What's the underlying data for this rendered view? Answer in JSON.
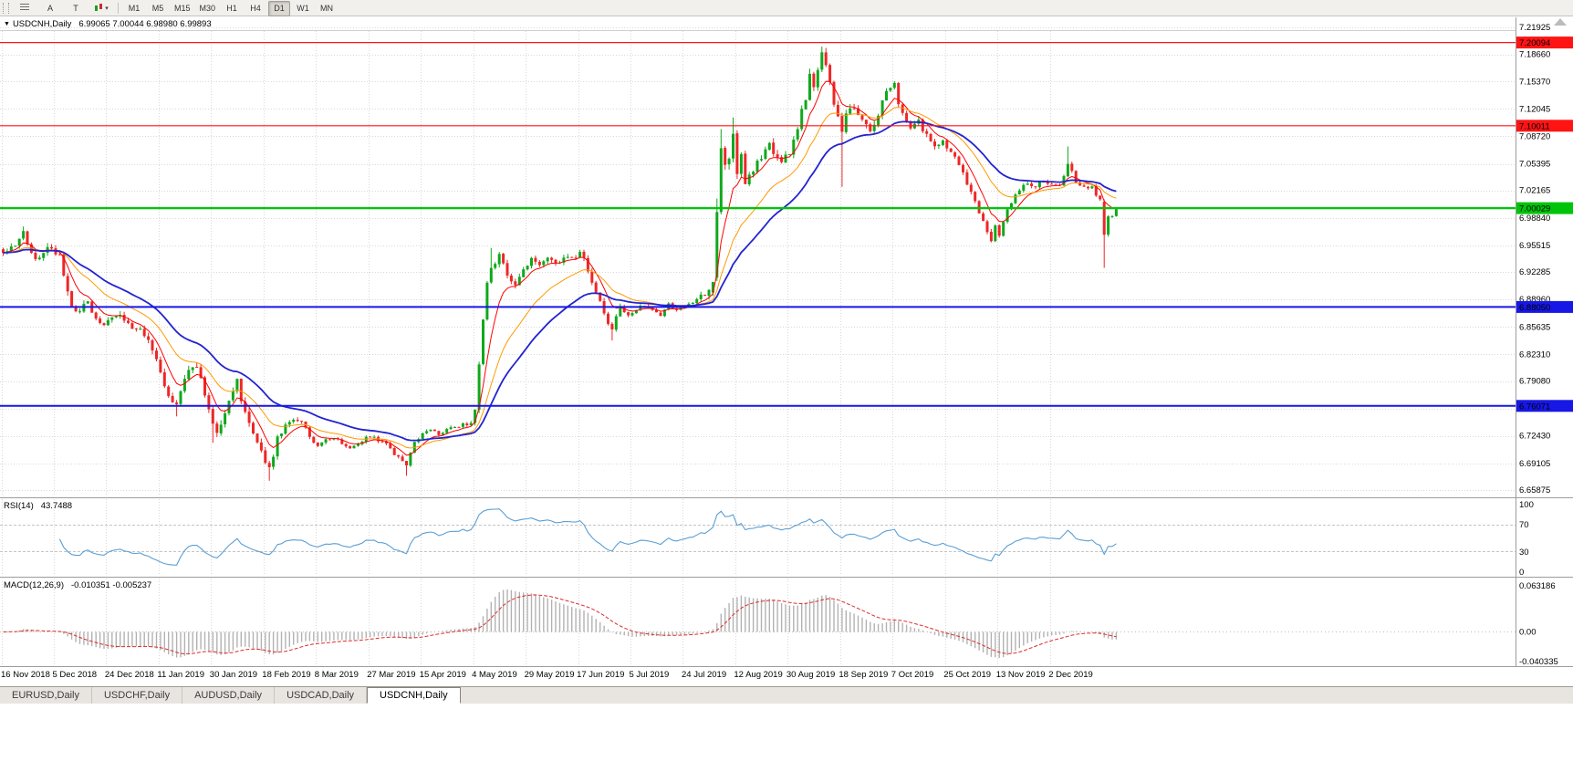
{
  "toolbar": {
    "tool_a": "A",
    "tool_t": "T",
    "timeframes": [
      "M1",
      "M5",
      "M15",
      "M30",
      "H1",
      "H4",
      "D1",
      "W1",
      "MN"
    ],
    "active_timeframe": "D1"
  },
  "chart": {
    "header": {
      "dropdown_glyph": "▼",
      "symbol": "USDCNH,Daily",
      "ohlc": "6.99065 7.00044 6.98980 6.99893"
    },
    "price_ticks": [
      "7.21925",
      "7.18660",
      "7.15370",
      "7.12045",
      "7.08720",
      "7.05395",
      "7.02165",
      "6.98840",
      "6.95515",
      "6.92285",
      "6.88960",
      "6.85635",
      "6.82310",
      "6.79080",
      "6.75755",
      "6.72430",
      "6.69105",
      "6.65875"
    ],
    "levels": [
      {
        "label": "7.20094",
        "price": 7.20094,
        "color": "#ff1414",
        "line_width": 1.2
      },
      {
        "label": "7.10011",
        "price": 7.10011,
        "color": "#ff1414",
        "line_width": 1.2
      },
      {
        "label": "7.00029",
        "price": 7.00029,
        "color": "#00c40a",
        "line_width": 2.4
      },
      {
        "label": "6.88050",
        "price": 6.8805,
        "color": "#1717e6",
        "line_width": 2
      },
      {
        "label": "6.76071",
        "price": 6.76071,
        "color": "#1717e6",
        "line_width": 2
      }
    ]
  },
  "rsi": {
    "label": "RSI(14)",
    "value": "43.7488",
    "ticks": [
      "100",
      "70",
      "30",
      "0"
    ]
  },
  "macd": {
    "label": "MACD(12,26,9)",
    "values": "-0.010351 -0.005237",
    "ticks": [
      "0.063186",
      "0.00",
      "-0.040335"
    ]
  },
  "tabs": {
    "labels": [
      "EURUSD,Daily",
      "USDCHF,Daily",
      "AUDUSD,Daily",
      "USDCAD,Daily",
      "USDCNH,Daily"
    ],
    "active_index": 4
  },
  "colors": {
    "up": "#0fa81c",
    "down": "#ed2727",
    "ma_fast": "#ff0000",
    "ma_mid": "#ff9a00",
    "ma_slow": "#2323cf",
    "rsi_line": "#5b9fd4",
    "macd_hist": "#b2b2b2",
    "macd_signal": "#dd2c2c",
    "grid": "#d9d9d9",
    "separator": "#9c9c9c",
    "axis_text": "#000000"
  },
  "chart_data": [
    {
      "type": "candlestick",
      "symbol": "USDCNH",
      "timeframe": "Daily",
      "bar_count": 277,
      "bars_per_x_label": 13,
      "y_range": [
        6.65875,
        7.21925
      ],
      "x_labels": [
        "16 Nov 2018",
        "5 Dec 2018",
        "24 Dec 2018",
        "11 Jan 2019",
        "30 Jan 2019",
        "18 Feb 2019",
        "8 Mar 2019",
        "27 Mar 2019",
        "15 Apr 2019",
        "4 May 2019",
        "29 May 2019",
        "17 Jun 2019",
        "5 Jul 2019",
        "24 Jul 2019",
        "12 Aug 2019",
        "30 Aug 2019",
        "18 Sep 2019",
        "7 Oct 2019",
        "25 Oct 2019",
        "13 Nov 2019",
        "2 Dec 2019"
      ],
      "price_close_anchors": [
        [
          0,
          6.946
        ],
        [
          2,
          6.953
        ],
        [
          4,
          6.963
        ],
        [
          5,
          6.97
        ],
        [
          6,
          6.955
        ],
        [
          8,
          6.938
        ],
        [
          10,
          6.946
        ],
        [
          12,
          6.952
        ],
        [
          14,
          6.945
        ],
        [
          15,
          6.918
        ],
        [
          16,
          6.898
        ],
        [
          17,
          6.885
        ],
        [
          19,
          6.874
        ],
        [
          21,
          6.888
        ],
        [
          23,
          6.864
        ],
        [
          25,
          6.858
        ],
        [
          27,
          6.869
        ],
        [
          29,
          6.873
        ],
        [
          31,
          6.86
        ],
        [
          34,
          6.852
        ],
        [
          37,
          6.832
        ],
        [
          39,
          6.802
        ],
        [
          41,
          6.77
        ],
        [
          43,
          6.762
        ],
        [
          45,
          6.79
        ],
        [
          47,
          6.812
        ],
        [
          49,
          6.796
        ],
        [
          51,
          6.754
        ],
        [
          53,
          6.728
        ],
        [
          55,
          6.752
        ],
        [
          57,
          6.777
        ],
        [
          58,
          6.79
        ],
        [
          60,
          6.752
        ],
        [
          62,
          6.724
        ],
        [
          64,
          6.707
        ],
        [
          66,
          6.684
        ],
        [
          68,
          6.72
        ],
        [
          70,
          6.737
        ],
        [
          72,
          6.747
        ],
        [
          74,
          6.74
        ],
        [
          76,
          6.724
        ],
        [
          78,
          6.713
        ],
        [
          80,
          6.719
        ],
        [
          82,
          6.723
        ],
        [
          84,
          6.713
        ],
        [
          86,
          6.707
        ],
        [
          88,
          6.715
        ],
        [
          90,
          6.721
        ],
        [
          92,
          6.723
        ],
        [
          94,
          6.717
        ],
        [
          96,
          6.709
        ],
        [
          98,
          6.697
        ],
        [
          100,
          6.69
        ],
        [
          102,
          6.717
        ],
        [
          104,
          6.727
        ],
        [
          106,
          6.733
        ],
        [
          108,
          6.725
        ],
        [
          110,
          6.731
        ],
        [
          112,
          6.735
        ],
        [
          114,
          6.737
        ],
        [
          116,
          6.743
        ],
        [
          117,
          6.752
        ],
        [
          118,
          6.808
        ],
        [
          119,
          6.868
        ],
        [
          120,
          6.908
        ],
        [
          121,
          6.93
        ],
        [
          123,
          6.943
        ],
        [
          125,
          6.92
        ],
        [
          127,
          6.904
        ],
        [
          129,
          6.927
        ],
        [
          131,
          6.937
        ],
        [
          133,
          6.931
        ],
        [
          135,
          6.943
        ],
        [
          137,
          6.933
        ],
        [
          139,
          6.943
        ],
        [
          141,
          6.937
        ],
        [
          143,
          6.947
        ],
        [
          145,
          6.927
        ],
        [
          147,
          6.897
        ],
        [
          149,
          6.873
        ],
        [
          151,
          6.853
        ],
        [
          153,
          6.883
        ],
        [
          155,
          6.869
        ],
        [
          157,
          6.879
        ],
        [
          159,
          6.883
        ],
        [
          161,
          6.877
        ],
        [
          163,
          6.871
        ],
        [
          165,
          6.883
        ],
        [
          167,
          6.877
        ],
        [
          169,
          6.883
        ],
        [
          171,
          6.887
        ],
        [
          173,
          6.893
        ],
        [
          175,
          6.897
        ],
        [
          176,
          6.913
        ],
        [
          177,
          7.002
        ],
        [
          178,
          7.078
        ],
        [
          179,
          7.048
        ],
        [
          180,
          7.063
        ],
        [
          181,
          7.09
        ],
        [
          182,
          7.046
        ],
        [
          183,
          7.063
        ],
        [
          184,
          7.03
        ],
        [
          186,
          7.049
        ],
        [
          188,
          7.063
        ],
        [
          190,
          7.082
        ],
        [
          191,
          7.063
        ],
        [
          193,
          7.059
        ],
        [
          195,
          7.069
        ],
        [
          197,
          7.099
        ],
        [
          199,
          7.136
        ],
        [
          200,
          7.158
        ],
        [
          201,
          7.149
        ],
        [
          202,
          7.172
        ],
        [
          203,
          7.186
        ],
        [
          204,
          7.176
        ],
        [
          205,
          7.153
        ],
        [
          206,
          7.128
        ],
        [
          207,
          7.108
        ],
        [
          208,
          7.094
        ],
        [
          209,
          7.113
        ],
        [
          211,
          7.126
        ],
        [
          213,
          7.106
        ],
        [
          215,
          7.092
        ],
        [
          217,
          7.113
        ],
        [
          219,
          7.142
        ],
        [
          221,
          7.148
        ],
        [
          223,
          7.112
        ],
        [
          225,
          7.096
        ],
        [
          227,
          7.105
        ],
        [
          229,
          7.088
        ],
        [
          231,
          7.078
        ],
        [
          233,
          7.082
        ],
        [
          234,
          7.075
        ],
        [
          236,
          7.062
        ],
        [
          238,
          7.045
        ],
        [
          240,
          7.019
        ],
        [
          242,
          6.996
        ],
        [
          244,
          6.973
        ],
        [
          245,
          6.963
        ],
        [
          246,
          6.979
        ],
        [
          247,
          6.969
        ],
        [
          248,
          6.986
        ],
        [
          250,
          7.006
        ],
        [
          252,
          7.022
        ],
        [
          254,
          7.03
        ],
        [
          256,
          7.026
        ],
        [
          258,
          7.034
        ],
        [
          260,
          7.03
        ],
        [
          262,
          7.027
        ],
        [
          263,
          7.04
        ],
        [
          264,
          7.052
        ],
        [
          265,
          7.045
        ],
        [
          266,
          7.032
        ],
        [
          268,
          7.024
        ],
        [
          270,
          7.026
        ],
        [
          271,
          7.018
        ],
        [
          272,
          7.009
        ],
        [
          273,
          6.968
        ],
        [
          274,
          6.989
        ],
        [
          275,
          6.9907
        ],
        [
          276,
          6.99893
        ]
      ],
      "candle_overrides": {
        "5": {
          "h": 6.978
        },
        "43": {
          "l": 6.748
        },
        "52": {
          "l": 6.716
        },
        "66": {
          "l": 6.67
        },
        "100": {
          "l": 6.676
        },
        "118": {
          "o": 6.756,
          "l": 6.752
        },
        "121": {
          "h": 6.952
        },
        "151": {
          "l": 6.84
        },
        "176": {
          "o": 6.898,
          "l": 6.894
        },
        "177": {
          "o": 6.916,
          "l": 6.912,
          "h": 7.012
        },
        "178": {
          "h": 7.096
        },
        "181": {
          "h": 7.11
        },
        "203": {
          "h": 7.196
        },
        "208": {
          "l": 7.026
        },
        "264": {
          "h": 7.075
        },
        "273": {
          "o": 7.008,
          "l": 6.928,
          "c": 6.968
        },
        "276": {
          "o": 6.99065,
          "h": 7.00044,
          "l": 6.9898,
          "c": 6.99893
        }
      },
      "volatility_anchors": [
        [
          0,
          0.0045
        ],
        [
          15,
          0.006
        ],
        [
          30,
          0.005
        ],
        [
          45,
          0.006
        ],
        [
          58,
          0.0065
        ],
        [
          70,
          0.0045
        ],
        [
          80,
          0.0026
        ],
        [
          100,
          0.003
        ],
        [
          112,
          0.0024
        ],
        [
          117,
          0.006
        ],
        [
          122,
          0.0055
        ],
        [
          135,
          0.004
        ],
        [
          148,
          0.0052
        ],
        [
          158,
          0.0026
        ],
        [
          172,
          0.0026
        ],
        [
          177,
          0.0085
        ],
        [
          185,
          0.006
        ],
        [
          200,
          0.007
        ],
        [
          210,
          0.0065
        ],
        [
          222,
          0.005
        ],
        [
          235,
          0.0045
        ],
        [
          250,
          0.0036
        ],
        [
          262,
          0.0034
        ],
        [
          272,
          0.0035
        ],
        [
          276,
          0.003
        ]
      ],
      "moving_averages": [
        {
          "name": "ma-fast",
          "type": "ema",
          "period": 7,
          "color_key": "ma_fast",
          "width": 1
        },
        {
          "name": "ma-mid",
          "type": "ema",
          "period": 18,
          "color_key": "ma_mid",
          "width": 1
        },
        {
          "name": "ma-slow",
          "type": "ema",
          "period": 32,
          "color_key": "ma_slow",
          "width": 1.8
        }
      ]
    },
    {
      "type": "line",
      "name": "RSI(14)",
      "period": 14,
      "range": [
        0,
        100
      ],
      "levels": [
        70,
        30
      ],
      "last_value": 43.7488
    },
    {
      "type": "histogram_line",
      "name": "MACD(12,26,9)",
      "fast": 12,
      "slow": 26,
      "signal": 9,
      "range": [
        -0.040335,
        0.063186
      ],
      "last_values": [
        -0.010351,
        -0.005237
      ]
    }
  ]
}
